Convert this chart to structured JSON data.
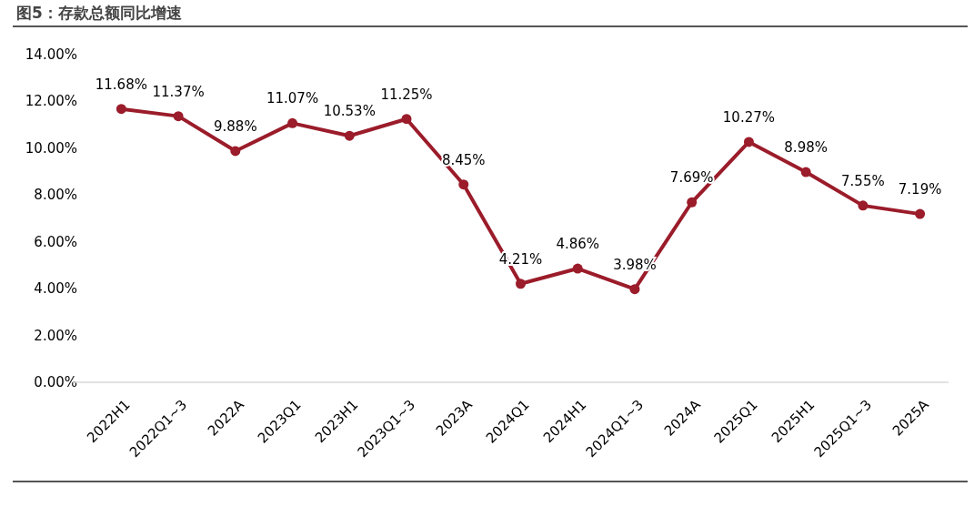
{
  "chart_data": {
    "type": "line",
    "title": "图5：存款总额同比增速",
    "categories": [
      "2022H1",
      "2022Q1~3",
      "2022A",
      "2023Q1",
      "2023H1",
      "2023Q1~3",
      "2023A",
      "2024Q1",
      "2024H1",
      "2024Q1~3",
      "2024A",
      "2025Q1",
      "2025H1",
      "2025Q1~3",
      "2025A"
    ],
    "series": [
      {
        "color": "#9b1c2a",
        "values": [
          11.68,
          11.37,
          9.88,
          11.07,
          10.53,
          11.25,
          8.45,
          4.21,
          4.86,
          3.98,
          7.69,
          10.27,
          8.98,
          7.55,
          7.19
        ],
        "value_labels": [
          "11.68%",
          "11.37%",
          "9.88%",
          "11.07%",
          "10.53%",
          "11.25%",
          "8.45%",
          "4.21%",
          "4.86%",
          "3.98%",
          "7.69%",
          "10.27%",
          "8.98%",
          "7.55%",
          "7.19%"
        ]
      }
    ],
    "ylim": [
      0,
      14
    ],
    "yticks": [
      {
        "value": 0,
        "label": "0.00%"
      },
      {
        "value": 2,
        "label": "2.00%"
      },
      {
        "value": 4,
        "label": "4.00%"
      },
      {
        "value": 6,
        "label": "6.00%"
      },
      {
        "value": 8,
        "label": "8.00%"
      },
      {
        "value": 10,
        "label": "10.00%"
      },
      {
        "value": 12,
        "label": "12.00%"
      },
      {
        "value": 14,
        "label": "14.00%"
      }
    ],
    "marker": "circle",
    "line_style": "solid",
    "grid": false
  }
}
